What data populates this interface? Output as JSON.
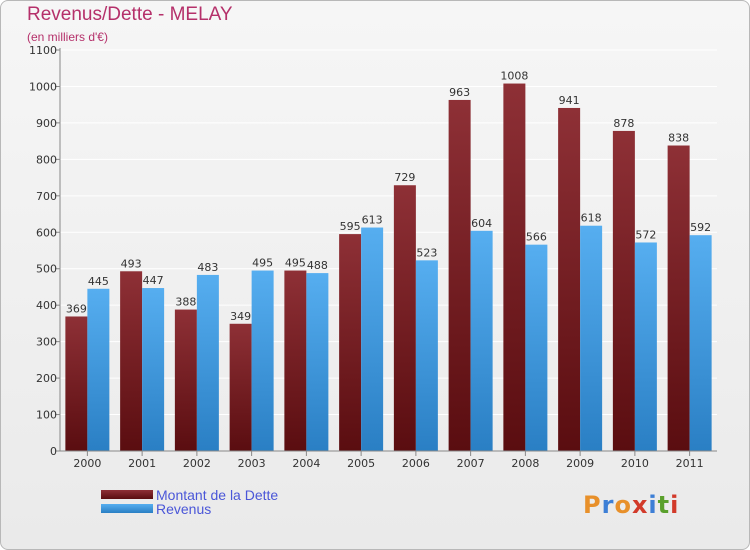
{
  "chart_data": {
    "type": "bar",
    "title": "Revenus/Dette - MELAY",
    "subtitle": "(en milliers d'€)",
    "categories": [
      "2000",
      "2001",
      "2002",
      "2003",
      "2004",
      "2005",
      "2006",
      "2007",
      "2008",
      "2009",
      "2010",
      "2011"
    ],
    "series": [
      {
        "name": "Montant de la Dette",
        "values": [
          369,
          493,
          388,
          349,
          495,
          595,
          729,
          963,
          1008,
          941,
          878,
          838
        ],
        "color": "#7a1c22"
      },
      {
        "name": "Revenus",
        "values": [
          445,
          447,
          483,
          495,
          488,
          613,
          523,
          604,
          566,
          618,
          572,
          592
        ],
        "color": "#3d9be0"
      }
    ],
    "ylim": [
      0,
      1100
    ],
    "yticks": [
      0,
      100,
      200,
      300,
      400,
      500,
      600,
      700,
      800,
      900,
      1000,
      1100
    ],
    "grid": true,
    "legend_position": "bottom-left"
  },
  "logo": {
    "text": "Proxiti",
    "letters": [
      "P",
      "r",
      "o",
      "x",
      "i",
      "t",
      "i"
    ],
    "colors": [
      "#e8902a",
      "#3d7fd6",
      "#e8902a",
      "#d23a2a",
      "#3d7fd6",
      "#5aa02c",
      "#d23a2a"
    ]
  }
}
